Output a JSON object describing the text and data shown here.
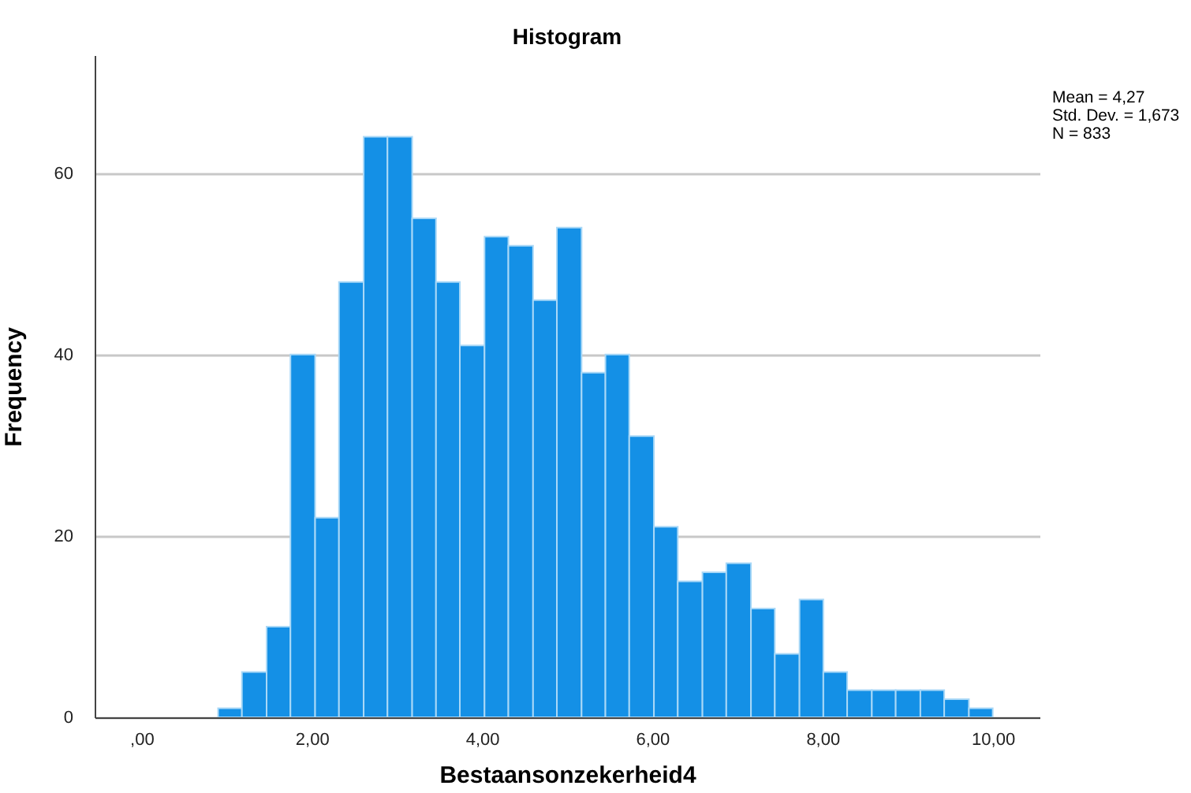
{
  "chart_data": {
    "type": "histogram",
    "title": "Histogram",
    "xlabel": "Bestaansonzekerheid4",
    "ylabel": "Frequency",
    "bins": [
      0.9,
      1.18,
      1.47,
      1.75,
      2.04,
      2.32,
      2.61,
      2.89,
      3.18,
      3.46,
      3.74,
      4.03,
      4.31,
      4.6,
      4.88,
      5.17,
      5.45,
      5.73,
      6.02,
      6.3,
      6.59,
      6.87,
      7.16,
      7.44,
      7.73,
      8.01,
      8.29,
      8.58,
      8.86,
      9.15,
      9.43,
      9.72,
      10.0
    ],
    "values": [
      1,
      5,
      10,
      40,
      22,
      48,
      64,
      64,
      55,
      48,
      41,
      53,
      52,
      46,
      54,
      38,
      40,
      31,
      21,
      15,
      16,
      17,
      12,
      7,
      13,
      5,
      3,
      3,
      3,
      3,
      2,
      1
    ],
    "color": "#1490e6",
    "xlim": [
      -0.55,
      10.55
    ],
    "ylim": [
      0,
      73
    ],
    "xticks": [
      {
        "value": 0,
        "label": ",00"
      },
      {
        "value": 2,
        "label": "2,00"
      },
      {
        "value": 4,
        "label": "4,00"
      },
      {
        "value": 6,
        "label": "6,00"
      },
      {
        "value": 8,
        "label": "8,00"
      },
      {
        "value": 10,
        "label": "10,00"
      }
    ],
    "yticks": [
      0,
      20,
      40,
      60
    ],
    "grid": "y",
    "annotations": [
      "Mean = 4,27",
      "Std. Dev. = 1,673",
      "N = 833"
    ]
  }
}
